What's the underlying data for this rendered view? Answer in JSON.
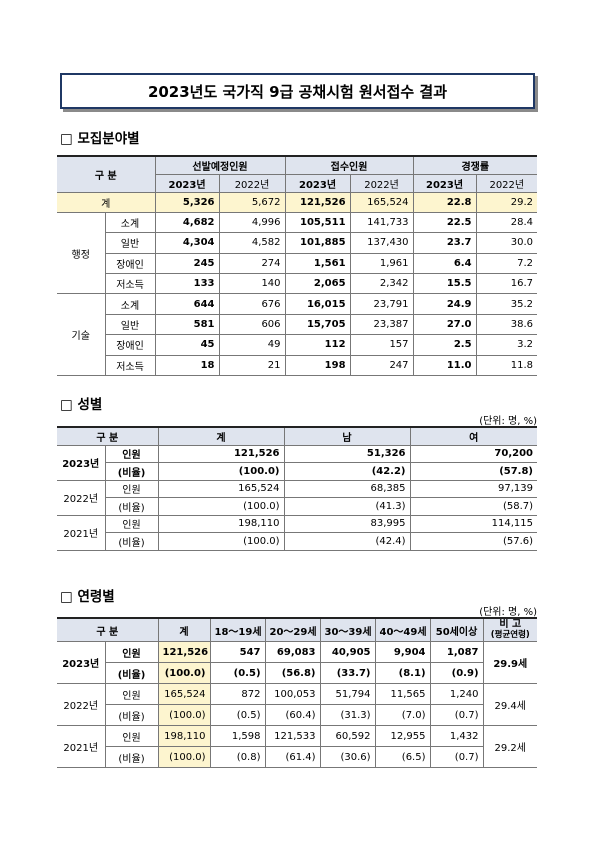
{
  "title": "2023년도 국가직 9급 공채시험 원서접수 결과",
  "section1": {
    "heading": "□  모집분야별",
    "table": {
      "header": {
        "label": "구 분",
        "groups": [
          "선발예정인원",
          "접수인원",
          "경쟁률"
        ],
        "years": [
          "2023년",
          "2022년"
        ]
      },
      "total": {
        "label": "계",
        "cells": [
          "5,326",
          "5,672",
          "121,526",
          "165,524",
          "22.8",
          "29.2"
        ]
      },
      "groups": [
        {
          "label": "행정",
          "rows": [
            {
              "label": "소계",
              "cells": [
                "4,682",
                "4,996",
                "105,511",
                "141,733",
                "22.5",
                "28.4"
              ]
            },
            {
              "label": "일반",
              "cells": [
                "4,304",
                "4,582",
                "101,885",
                "137,430",
                "23.7",
                "30.0"
              ]
            },
            {
              "label": "장애인",
              "cells": [
                "245",
                "274",
                "1,561",
                "1,961",
                "6.4",
                "7.2"
              ]
            },
            {
              "label": "저소득",
              "cells": [
                "133",
                "140",
                "2,065",
                "2,342",
                "15.5",
                "16.7"
              ]
            }
          ]
        },
        {
          "label": "기술",
          "rows": [
            {
              "label": "소계",
              "cells": [
                "644",
                "676",
                "16,015",
                "23,791",
                "24.9",
                "35.2"
              ]
            },
            {
              "label": "일반",
              "cells": [
                "581",
                "606",
                "15,705",
                "23,387",
                "27.0",
                "38.6"
              ]
            },
            {
              "label": "장애인",
              "cells": [
                "45",
                "49",
                "112",
                "157",
                "2.5",
                "3.2"
              ]
            },
            {
              "label": "저소득",
              "cells": [
                "18",
                "21",
                "198",
                "247",
                "11.0",
                "11.8"
              ]
            }
          ]
        }
      ]
    }
  },
  "section2": {
    "heading": "□  성별",
    "unit": "(단위: 명, %)",
    "table": {
      "header": [
        "구 분",
        "계",
        "남",
        "여"
      ],
      "groups": [
        {
          "year": "2023년",
          "rows": [
            {
              "label": "인원",
              "cells": [
                "121,526",
                "51,326",
                "70,200"
              ]
            },
            {
              "label": "(비율)",
              "cells": [
                "(100.0)",
                "(42.2)",
                "(57.8)"
              ]
            }
          ]
        },
        {
          "year": "2022년",
          "rows": [
            {
              "label": "인원",
              "cells": [
                "165,524",
                "68,385",
                "97,139"
              ]
            },
            {
              "label": "(비율)",
              "cells": [
                "(100.0)",
                "(41.3)",
                "(58.7)"
              ]
            }
          ]
        },
        {
          "year": "2021년",
          "rows": [
            {
              "label": "인원",
              "cells": [
                "198,110",
                "83,995",
                "114,115"
              ]
            },
            {
              "label": "(비율)",
              "cells": [
                "(100.0)",
                "(42.4)",
                "(57.6)"
              ]
            }
          ]
        }
      ]
    }
  },
  "section3": {
    "heading": "□  연령별",
    "unit": "(단위: 명, %)",
    "table": {
      "header": [
        "구 분",
        "계",
        "18～19세",
        "20～29세",
        "30～39세",
        "40～49세",
        "50세이상"
      ],
      "note_header": [
        "비 고",
        "(평균연령)"
      ],
      "groups": [
        {
          "year": "2023년",
          "note": "29.9세",
          "rows": [
            {
              "label": "인원",
              "cells": [
                "121,526",
                "547",
                "69,083",
                "40,905",
                "9,904",
                "1,087"
              ]
            },
            {
              "label": "(비율)",
              "cells": [
                "(100.0)",
                "(0.5)",
                "(56.8)",
                "(33.7)",
                "(8.1)",
                "(0.9)"
              ]
            }
          ]
        },
        {
          "year": "2022년",
          "note": "29.4세",
          "rows": [
            {
              "label": "인원",
              "cells": [
                "165,524",
                "872",
                "100,053",
                "51,794",
                "11,565",
                "1,240"
              ]
            },
            {
              "label": "(비율)",
              "cells": [
                "(100.0)",
                "(0.5)",
                "(60.4)",
                "(31.3)",
                "(7.0)",
                "(0.7)"
              ]
            }
          ]
        },
        {
          "year": "2021년",
          "note": "29.2세",
          "rows": [
            {
              "label": "인원",
              "cells": [
                "198,110",
                "1,598",
                "121,533",
                "60,592",
                "12,955",
                "1,432"
              ]
            },
            {
              "label": "(비율)",
              "cells": [
                "(100.0)",
                "(0.8)",
                "(61.4)",
                "(30.6)",
                "(6.5)",
                "(0.7)"
              ]
            }
          ]
        }
      ]
    }
  }
}
